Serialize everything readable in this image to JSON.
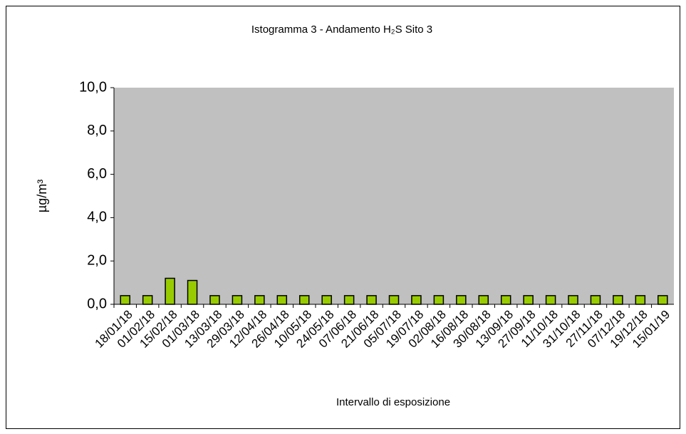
{
  "chart_data": {
    "type": "bar",
    "title": "Istogramma 3 - Andamento H₂S Sito 3",
    "x_label": "Intervallo di esposizione",
    "y_label": "µg/m³",
    "categories": [
      "18/01/18",
      "01/02/18",
      "15/02/18",
      "01/03/18",
      "13/03/18",
      "29/03/18",
      "12/04/18",
      "26/04/18",
      "10/05/18",
      "24/05/18",
      "07/06/18",
      "21/06/18",
      "05/07/18",
      "19/07/18",
      "02/08/18",
      "16/08/18",
      "30/08/18",
      "13/09/18",
      "27/09/18",
      "11/10/18",
      "31/10/18",
      "27/11/18",
      "07/12/18",
      "19/12/18",
      "15/01/19"
    ],
    "values": [
      0.4,
      0.4,
      1.2,
      1.1,
      0.4,
      0.4,
      0.4,
      0.4,
      0.4,
      0.4,
      0.4,
      0.4,
      0.4,
      0.4,
      0.4,
      0.4,
      0.4,
      0.4,
      0.4,
      0.4,
      0.4,
      0.4,
      0.4,
      0.4,
      0.4
    ],
    "color": "#99cc00",
    "plot_background": "#c0c0c0",
    "ylim": [
      0,
      10
    ],
    "yticks": [
      {
        "value": 0,
        "label": "0,0"
      },
      {
        "value": 2,
        "label": "2,0"
      },
      {
        "value": 4,
        "label": "4,0"
      },
      {
        "value": 6,
        "label": "6,0"
      },
      {
        "value": 8,
        "label": "8,0"
      },
      {
        "value": 10,
        "label": "10,0"
      }
    ],
    "grid": false
  }
}
